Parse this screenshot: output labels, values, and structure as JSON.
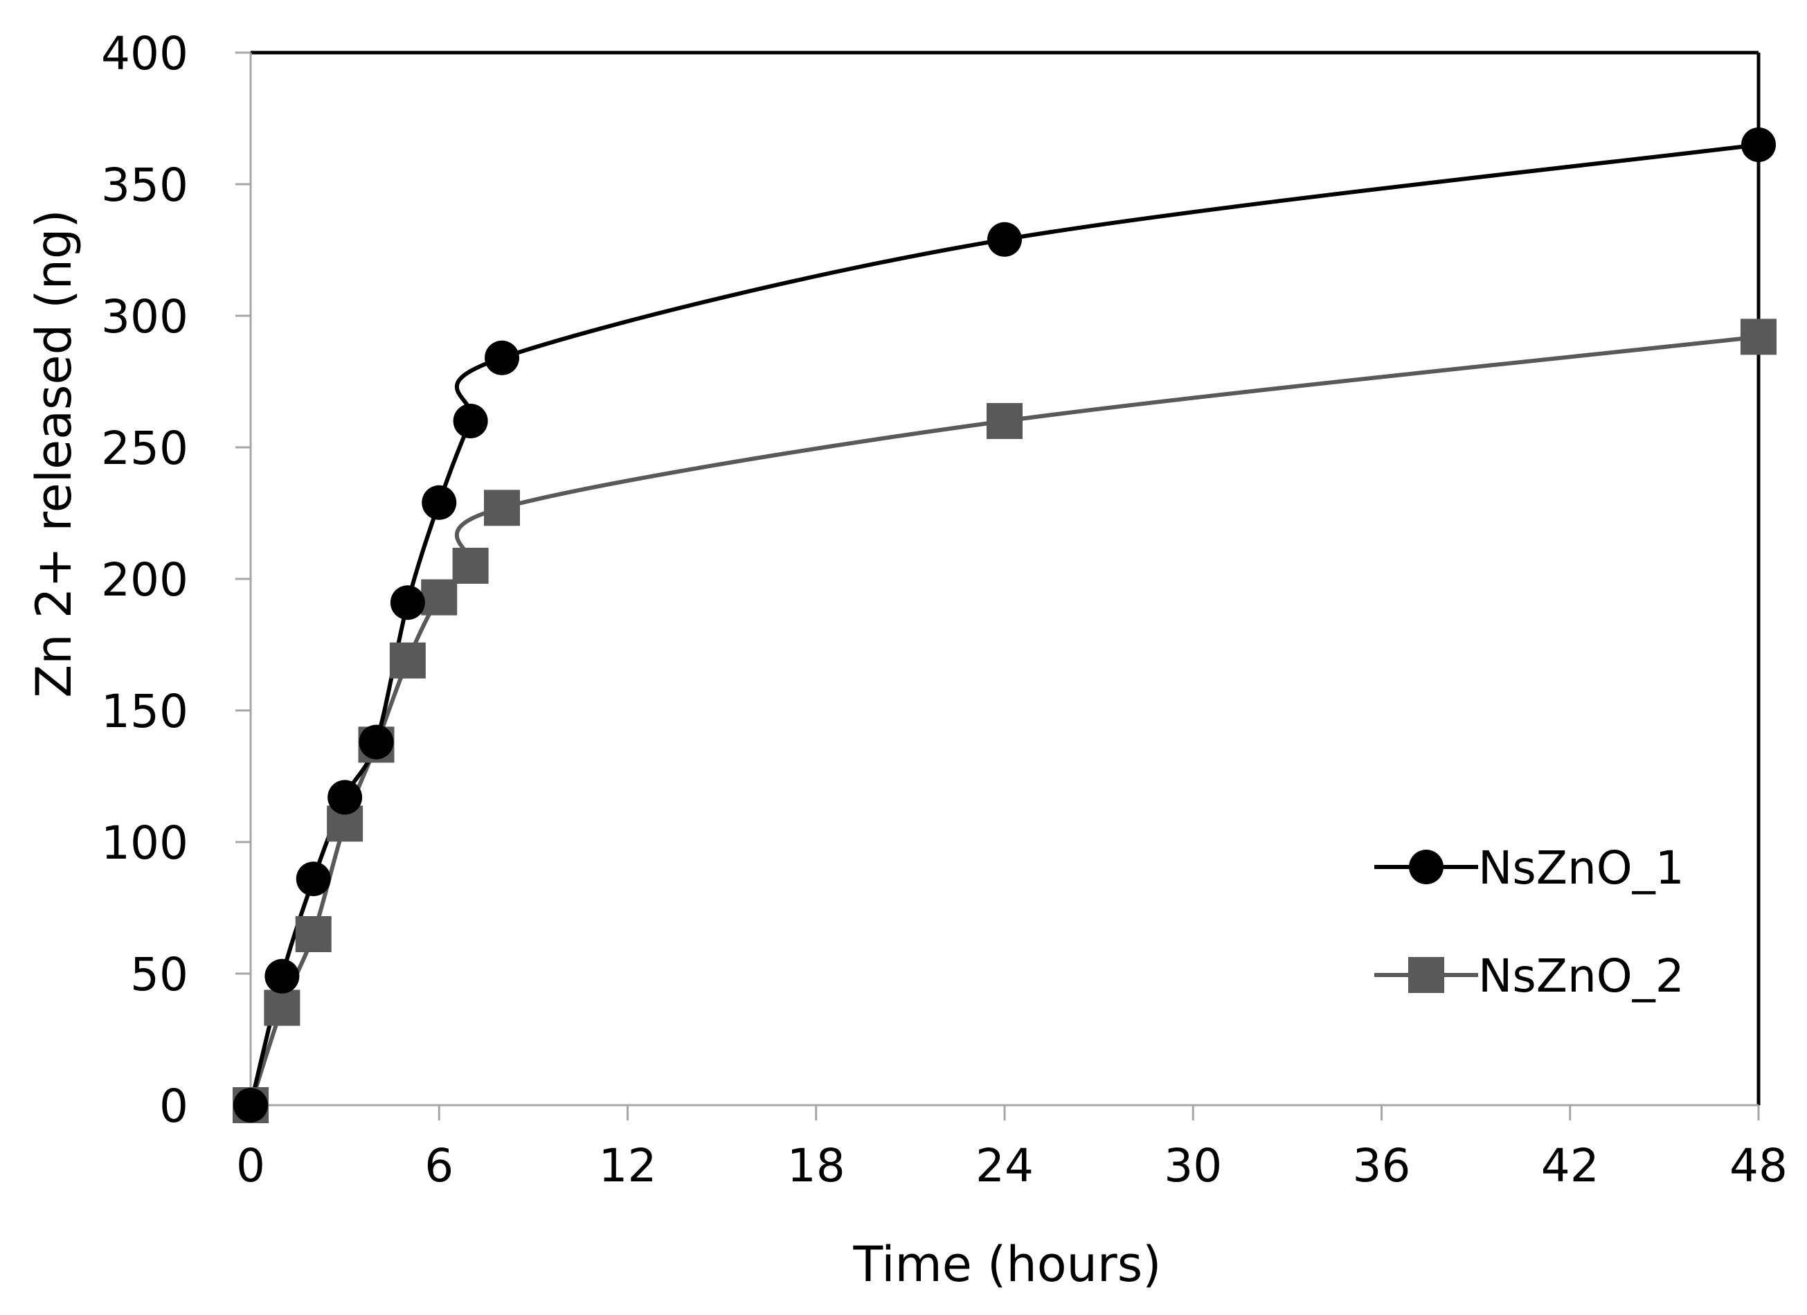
{
  "chart_data": {
    "type": "line",
    "title": "",
    "xlabel": "Time (hours)",
    "ylabel": "Zn 2+ released (ng)",
    "xlim": [
      0,
      48
    ],
    "ylim": [
      0,
      400
    ],
    "xticks": [
      0,
      6,
      12,
      18,
      24,
      30,
      36,
      42,
      48
    ],
    "yticks": [
      0,
      50,
      100,
      150,
      200,
      250,
      300,
      350,
      400
    ],
    "grid": false,
    "legend_position": "bottom-right",
    "series": [
      {
        "name": "NsZnO_1",
        "marker": "circle",
        "color": "#000000",
        "x": [
          0,
          1,
          2,
          3,
          4,
          5,
          6,
          7,
          8,
          24,
          48
        ],
        "y": [
          0,
          49,
          86,
          117,
          138,
          191,
          229,
          260,
          284,
          329,
          365
        ]
      },
      {
        "name": "NsZnO_2",
        "marker": "square",
        "color": "#595959",
        "x": [
          0,
          1,
          2,
          3,
          4,
          5,
          6,
          7,
          8,
          24,
          48
        ],
        "y": [
          0,
          37,
          65,
          107,
          137,
          169,
          193,
          205,
          227,
          260,
          292
        ]
      }
    ]
  }
}
